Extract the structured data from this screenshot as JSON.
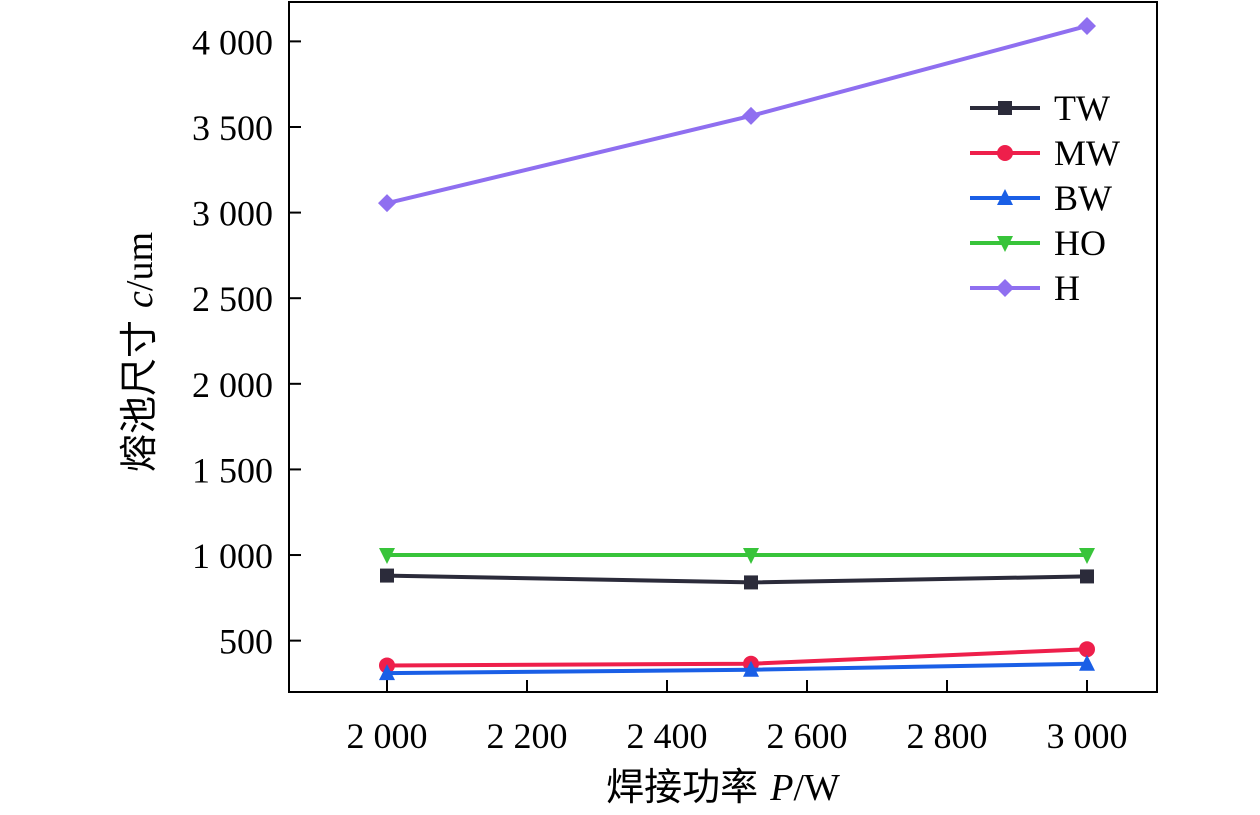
{
  "chart_data": {
    "type": "line",
    "xlabel": "焊接功率 P/W",
    "xlabel_main": "焊接功率 ",
    "xlabel_var": "P",
    "xlabel_unit": "/W",
    "ylabel": "熔池尺寸 c/um",
    "ylabel_main": "熔池尺寸 ",
    "ylabel_var": "c",
    "ylabel_unit": "/um",
    "xlim": [
      1860,
      3100
    ],
    "ylim": [
      200,
      4230
    ],
    "x_ticks": [
      2000,
      2200,
      2400,
      2600,
      2800,
      3000
    ],
    "x_tick_labels": [
      "2 000",
      "2 200",
      "2 400",
      "2 600",
      "2 800",
      "3 000"
    ],
    "y_ticks": [
      500,
      1000,
      1500,
      2000,
      2500,
      3000,
      3500,
      4000
    ],
    "y_tick_labels": [
      "500",
      "1 000",
      "1 500",
      "2 000",
      "2 500",
      "3 000",
      "3 500",
      "4 000"
    ],
    "grid": false,
    "legend_position": "top-right",
    "x": [
      2000,
      2520,
      3000
    ],
    "series": [
      {
        "name": "TW",
        "color": "#2b2b3a",
        "marker": "square",
        "values": [
          880,
          840,
          875
        ]
      },
      {
        "name": "MW",
        "color": "#ee1f4b",
        "marker": "circle",
        "values": [
          355,
          365,
          450
        ]
      },
      {
        "name": "BW",
        "color": "#1a5fe6",
        "marker": "triangle-up",
        "values": [
          310,
          330,
          365
        ]
      },
      {
        "name": "HO",
        "color": "#38c43a",
        "marker": "triangle-down",
        "values": [
          1000,
          1000,
          1000
        ]
      },
      {
        "name": "H",
        "color": "#8f6ff0",
        "marker": "diamond",
        "values": [
          3055,
          3565,
          4090
        ]
      }
    ]
  }
}
